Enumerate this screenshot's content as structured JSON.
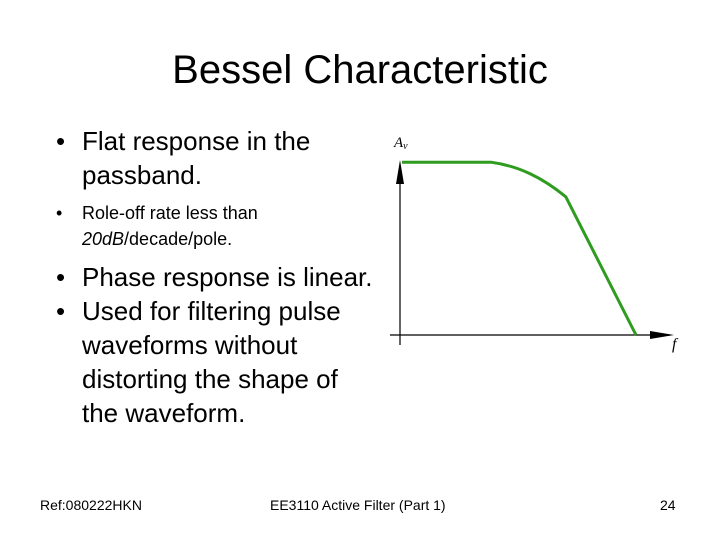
{
  "slide": {
    "title": "Bessel Characteristic",
    "bullets": [
      {
        "marker": "•",
        "text": "Flat response in the passband."
      },
      {
        "marker": "•",
        "text_before": "Role-off rate less than ",
        "text_italic": "20dB",
        "text_after": "/decade/pole."
      },
      {
        "marker": "•",
        "text": "Phase response is linear."
      },
      {
        "marker": "•",
        "text": "Used for filtering pulse waveforms without distorting the shape of the waveform."
      }
    ]
  },
  "chart_data": {
    "type": "line",
    "xlabel": "f",
    "ylabel": "Av",
    "ylabel_main": "A",
    "ylabel_sub": "v",
    "curve_color": "#2e9c1f",
    "axis_color": "#000000",
    "x": [
      0.0,
      0.38,
      0.5,
      0.6,
      0.7,
      1.0
    ],
    "values": [
      0.9,
      0.9,
      0.88,
      0.82,
      0.72,
      0.0
    ]
  },
  "footer": {
    "ref": "Ref:080222HKN",
    "course": "EE3110 Active Filter (Part 1)",
    "page": "24"
  }
}
